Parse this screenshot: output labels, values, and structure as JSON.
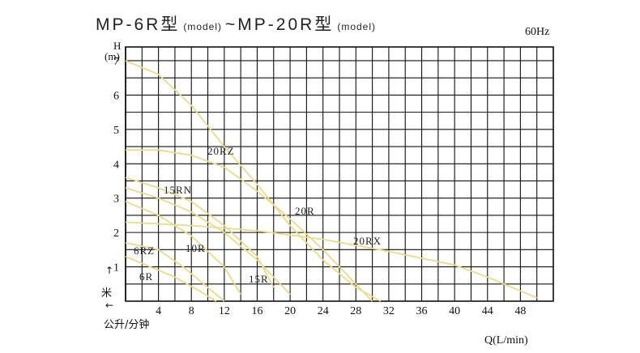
{
  "title": {
    "part1": "MP-6R型",
    "model1": "(model)",
    "sep": "~",
    "part2": "MP-20R型",
    "model2": "(model)"
  },
  "frequency": "60Hz",
  "axis_labels": {
    "y_h": "H",
    "y_unit": "(m)",
    "y_cn": "米",
    "x": "Q(L/min)",
    "x_cn": "公升/分钟",
    "arrow_up": "↑",
    "arrow_left": "←"
  },
  "chart_data": {
    "type": "line",
    "xlim": [
      0,
      52
    ],
    "ylim": [
      0,
      7.4
    ],
    "x_ticks": [
      "4",
      "8",
      "12",
      "16",
      "20",
      "24",
      "28",
      "32",
      "36",
      "40",
      "44",
      "48"
    ],
    "y_ticks": [
      "1",
      "2",
      "3",
      "4",
      "5",
      "6",
      "7"
    ],
    "grid": true,
    "line_color": "#e8dc88",
    "series": [
      {
        "name": "20RZ",
        "x": [
          0,
          4,
          8,
          12,
          16,
          20,
          24,
          28,
          31
        ],
        "y": [
          7.0,
          6.6,
          5.7,
          4.5,
          3.4,
          2.2,
          1.2,
          0.4,
          0
        ]
      },
      {
        "name": "20R",
        "x": [
          0,
          4,
          8,
          12,
          16,
          20,
          24,
          28,
          30
        ],
        "y": [
          4.4,
          4.4,
          4.25,
          3.9,
          3.2,
          2.4,
          1.5,
          0.5,
          0
        ]
      },
      {
        "name": "20RX",
        "x": [
          0,
          8,
          16,
          24,
          32,
          40,
          44,
          48,
          50
        ],
        "y": [
          2.3,
          2.2,
          2.05,
          1.8,
          1.45,
          1.05,
          0.7,
          0.3,
          0.1
        ]
      },
      {
        "name": "15RN",
        "x": [
          0,
          4,
          8,
          12,
          16,
          18
        ],
        "y": [
          3.6,
          3.3,
          2.9,
          2.2,
          1.3,
          0.4
        ]
      },
      {
        "name": "15R",
        "x": [
          0,
          4,
          8,
          12,
          16,
          20
        ],
        "y": [
          3.3,
          3.0,
          2.6,
          2.0,
          1.2,
          0.2
        ]
      },
      {
        "name": "10R",
        "x": [
          0,
          4,
          8,
          12,
          14
        ],
        "y": [
          2.9,
          2.5,
          1.9,
          1.0,
          0.2
        ]
      },
      {
        "name": "6RZ",
        "x": [
          0,
          4,
          7,
          10,
          12
        ],
        "y": [
          1.7,
          1.5,
          1.0,
          0.4,
          0
        ]
      },
      {
        "name": "6R",
        "x": [
          0,
          3,
          6,
          9,
          11
        ],
        "y": [
          1.3,
          1.0,
          0.7,
          0.3,
          0
        ]
      }
    ],
    "series_labels": [
      "20RZ",
      "20R",
      "20RX",
      "15RN",
      "15R",
      "10R",
      "6RZ",
      "6R"
    ]
  }
}
